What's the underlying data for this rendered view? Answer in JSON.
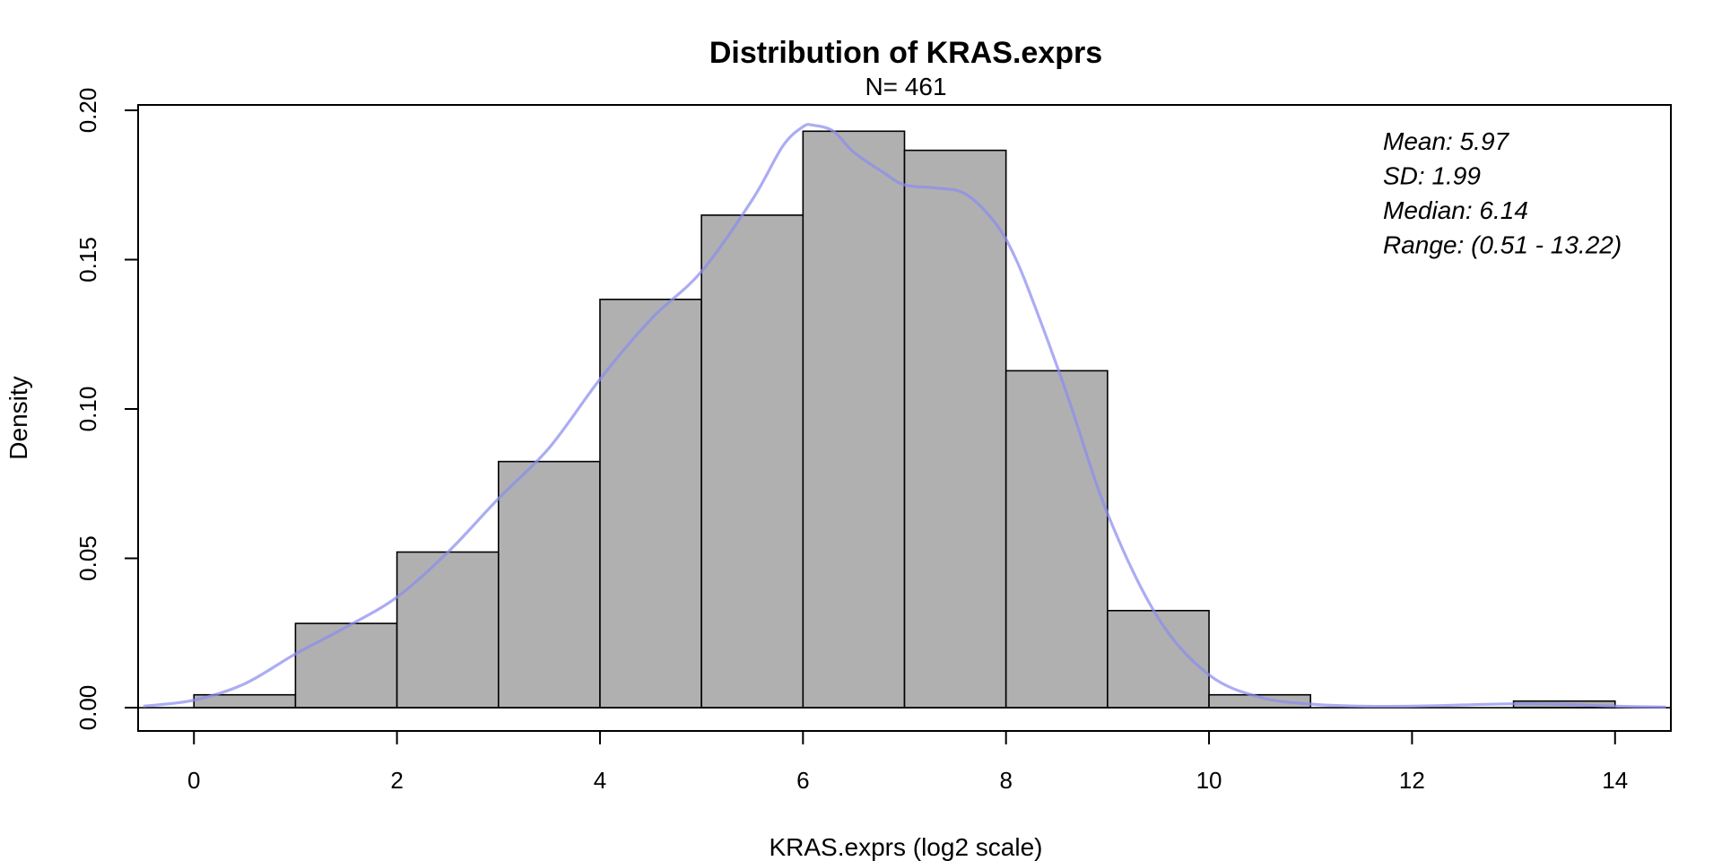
{
  "chart_data": {
    "type": "bar",
    "title": "Distribution of KRAS.exprs",
    "subtitle": "N= 461",
    "xlabel": "KRAS.exprs (log2 scale)",
    "ylabel": "Density",
    "xlim": [
      -0.55,
      14.55
    ],
    "ylim": [
      -0.0078,
      0.2018
    ],
    "x_ticks": [
      0,
      2,
      4,
      6,
      8,
      10,
      12,
      14
    ],
    "x_tick_labels": [
      "0",
      "2",
      "4",
      "6",
      "8",
      "10",
      "12",
      "14"
    ],
    "y_ticks": [
      0,
      0.05,
      0.1,
      0.15,
      0.2
    ],
    "y_tick_labels": [
      "0.00",
      "0.05",
      "0.10",
      "0.15",
      "0.20"
    ],
    "bins": [
      {
        "x0": 0,
        "x1": 1,
        "density": 0.0043
      },
      {
        "x0": 1,
        "x1": 2,
        "density": 0.0282
      },
      {
        "x0": 2,
        "x1": 3,
        "density": 0.0521
      },
      {
        "x0": 3,
        "x1": 4,
        "density": 0.0824
      },
      {
        "x0": 4,
        "x1": 5,
        "density": 0.1367
      },
      {
        "x0": 5,
        "x1": 6,
        "density": 0.1649
      },
      {
        "x0": 6,
        "x1": 7,
        "density": 0.193
      },
      {
        "x0": 7,
        "x1": 8,
        "density": 0.1866
      },
      {
        "x0": 8,
        "x1": 9,
        "density": 0.1128
      },
      {
        "x0": 9,
        "x1": 10,
        "density": 0.0325
      },
      {
        "x0": 10,
        "x1": 11,
        "density": 0.0043
      },
      {
        "x0": 11,
        "x1": 12,
        "density": 0
      },
      {
        "x0": 12,
        "x1": 13,
        "density": 0
      },
      {
        "x0": 13,
        "x1": 14,
        "density": 0.0022
      }
    ],
    "density_curve": {
      "x": [
        -0.5,
        0,
        0.5,
        1,
        1.5,
        2,
        2.5,
        3,
        3.5,
        4,
        4.5,
        5,
        5.5,
        5.8,
        6,
        6.1,
        6.3,
        6.5,
        6.8,
        7,
        7.3,
        7.6,
        7.9,
        8.1,
        8.3,
        8.6,
        9,
        9.5,
        10,
        10.5,
        11,
        11.5,
        12,
        12.5,
        13,
        13.5,
        14,
        14.5
      ],
      "y": [
        0.0005,
        0.0025,
        0.008,
        0.018,
        0.027,
        0.037,
        0.052,
        0.07,
        0.087,
        0.11,
        0.13,
        0.146,
        0.17,
        0.188,
        0.1945,
        0.195,
        0.193,
        0.186,
        0.179,
        0.175,
        0.174,
        0.172,
        0.162,
        0.15,
        0.133,
        0.105,
        0.065,
        0.03,
        0.011,
        0.0035,
        0.0012,
        0.0005,
        0.0005,
        0.0009,
        0.0013,
        0.0011,
        0.0005,
        0.0002
      ]
    },
    "colors": {
      "bar_fill": "#b0b0b0",
      "bar_stroke": "#000000",
      "curve": "#8c8cf0",
      "axis": "#000000"
    },
    "grid": false,
    "stats_box": {
      "placement": "top-right",
      "lines": [
        "Mean: 5.97",
        "SD: 1.99",
        "Median: 6.14",
        "Range: (0.51 - 13.22)"
      ]
    }
  }
}
